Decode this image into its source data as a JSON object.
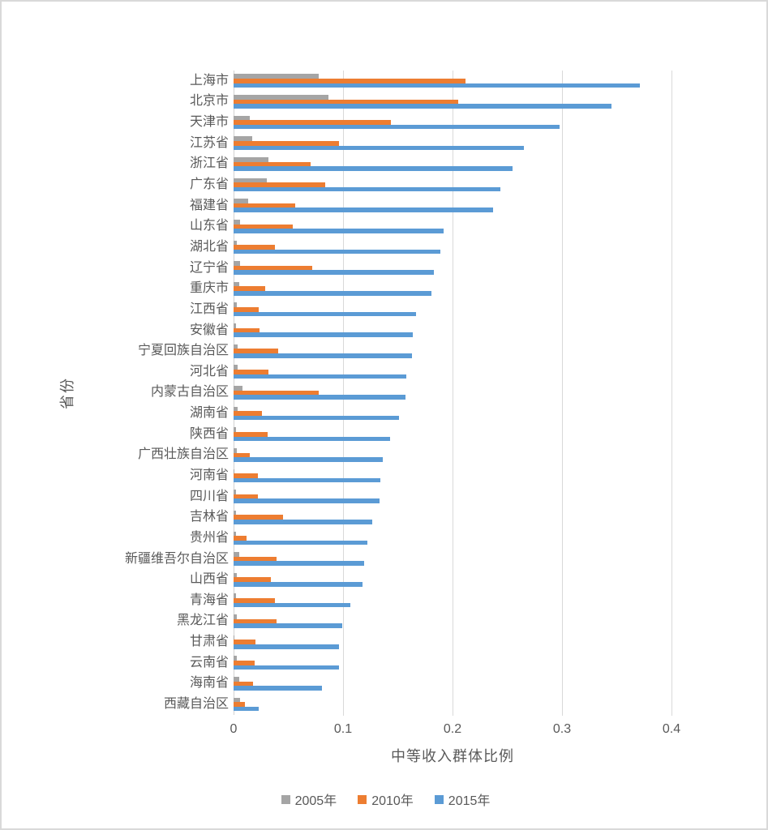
{
  "frame": {
    "background": "#ffffff",
    "border_color": "#d9d9d9",
    "text_color": "#595959",
    "gridline_color": "#d9d9d9",
    "axis_line_color": "#d2d2d2"
  },
  "chart_data": {
    "type": "bar",
    "orientation": "horizontal",
    "grouped": true,
    "title": "",
    "xlabel": "中等收入群体比例",
    "ylabel": "省份",
    "xlim": [
      0,
      0.4
    ],
    "xtick_labels": [
      "0",
      "0.1",
      "0.2",
      "0.3",
      "0.4"
    ],
    "xtick_values": [
      0,
      0.1,
      0.2,
      0.3,
      0.4
    ],
    "grid": true,
    "legend_position": "bottom",
    "categories": [
      "上海市",
      "北京市",
      "天津市",
      "江苏省",
      "浙江省",
      "广东省",
      "福建省",
      "山东省",
      "湖北省",
      "辽宁省",
      "重庆市",
      "江西省",
      "安徽省",
      "宁夏回族自治区",
      "河北省",
      "内蒙古自治区",
      "湖南省",
      "陕西省",
      "广西壮族自治区",
      "河南省",
      "四川省",
      "吉林省",
      "贵州省",
      "新疆维吾尔自治区",
      "山西省",
      "青海省",
      "黑龙江省",
      "甘肃省",
      "云南省",
      "海南省",
      "西藏自治区"
    ],
    "series": [
      {
        "name": "2005年",
        "color": "#A5A5A5",
        "values": [
          0.078,
          0.087,
          0.015,
          0.017,
          0.032,
          0.03,
          0.013,
          0.006,
          0.003,
          0.006,
          0.005,
          0.003,
          0.002,
          0.004,
          0.004,
          0.008,
          0.004,
          0.002,
          0.003,
          0.001,
          0.002,
          0.002,
          0.002,
          0.005,
          0.003,
          0.002,
          0.003,
          0.001,
          0.003,
          0.005,
          0.006
        ]
      },
      {
        "name": "2010年",
        "color": "#ED7D31",
        "values": [
          0.212,
          0.205,
          0.144,
          0.096,
          0.07,
          0.084,
          0.056,
          0.054,
          0.038,
          0.072,
          0.029,
          0.023,
          0.024,
          0.041,
          0.032,
          0.078,
          0.026,
          0.031,
          0.015,
          0.022,
          0.022,
          0.045,
          0.012,
          0.039,
          0.034,
          0.038,
          0.039,
          0.02,
          0.019,
          0.018,
          0.01
        ]
      },
      {
        "name": "2015年",
        "color": "#5B9BD5",
        "values": [
          0.371,
          0.345,
          0.298,
          0.265,
          0.255,
          0.244,
          0.237,
          0.192,
          0.189,
          0.183,
          0.181,
          0.167,
          0.164,
          0.163,
          0.158,
          0.157,
          0.151,
          0.143,
          0.136,
          0.134,
          0.133,
          0.127,
          0.122,
          0.119,
          0.118,
          0.107,
          0.099,
          0.096,
          0.096,
          0.081,
          0.023
        ]
      }
    ]
  }
}
